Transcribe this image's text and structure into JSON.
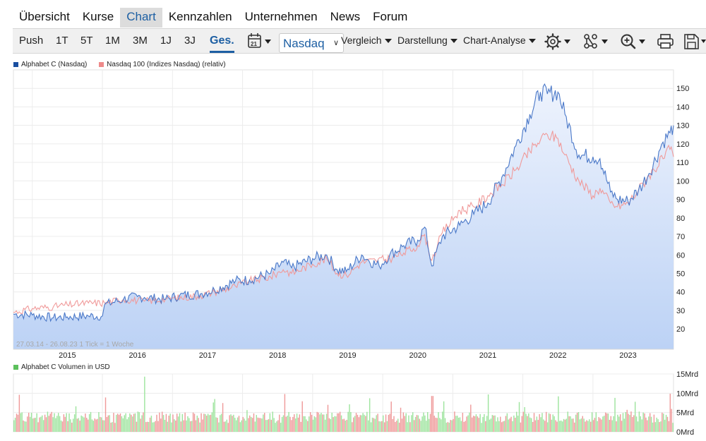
{
  "nav": {
    "tabs": [
      {
        "label": "Übersicht"
      },
      {
        "label": "Kurse"
      },
      {
        "label": "Chart",
        "active": true
      },
      {
        "label": "Kennzahlen"
      },
      {
        "label": "Unternehmen"
      },
      {
        "label": "News"
      },
      {
        "label": "Forum"
      }
    ]
  },
  "toolbar": {
    "periods": [
      "Push",
      "1T",
      "5T",
      "1M",
      "3M",
      "1J",
      "3J",
      "Ges."
    ],
    "selected_period": "Ges.",
    "calendar_label": "21",
    "exchange": "Nasdaq",
    "menus": [
      "Vergleich",
      "Darstellung",
      "Chart-Analyse"
    ],
    "icons": [
      "settings-icon",
      "indicators-icon",
      "zoom-icon",
      "print-icon",
      "save-icon"
    ]
  },
  "legend_main": [
    {
      "label": "Alphabet C (Nasdaq)",
      "color": "#1a4fa0"
    },
    {
      "label": "Nasdaq 100 (Indizes Nasdaq) (relativ)",
      "color": "#ee8a8a"
    }
  ],
  "range_label": "27.03.14 - 26.08.23   1 Tick = 1 Woche",
  "legend_volume": {
    "label": "Alphabet C Volumen in USD",
    "color": "#5cc05c"
  },
  "colors": {
    "accent": "#1d5fa3",
    "price_line": "#4a78c8",
    "index_line": "#f09a9a",
    "area_top": "#eef3fd",
    "area_bottom": "#bcd2f5",
    "vol_up": "#9ee49e",
    "vol_down": "#ef9a9a"
  },
  "chart_data": [
    {
      "type": "area",
      "title": "",
      "x_start": "2014-03-27",
      "x_end": "2023-08-26",
      "x_tick_labels": [
        "2015",
        "2016",
        "2017",
        "2018",
        "2019",
        "2020",
        "2021",
        "2022",
        "2023"
      ],
      "y_ticks": [
        20,
        30,
        40,
        50,
        60,
        70,
        80,
        90,
        100,
        110,
        120,
        130,
        140,
        150
      ],
      "ylim": [
        9,
        160
      ],
      "grid": true,
      "legend": "top-left",
      "series": [
        {
          "name": "Alphabet C (Nasdaq)",
          "x": [
            2014.23,
            2014.5,
            2014.8,
            2015.0,
            2015.3,
            2015.5,
            2015.53,
            2015.8,
            2016.0,
            2016.1,
            2016.4,
            2016.6,
            2016.9,
            2017.1,
            2017.4,
            2017.6,
            2017.9,
            2018.08,
            2018.2,
            2018.5,
            2018.7,
            2018.85,
            2018.98,
            2019.2,
            2019.3,
            2019.45,
            2019.6,
            2019.8,
            2020.0,
            2020.1,
            2020.2,
            2020.35,
            2020.6,
            2020.8,
            2021.0,
            2021.2,
            2021.4,
            2021.6,
            2021.75,
            2021.85,
            2022.0,
            2022.1,
            2022.3,
            2022.5,
            2022.6,
            2022.75,
            2022.85,
            2023.0,
            2023.15,
            2023.3,
            2023.5,
            2023.6,
            2023.65
          ],
          "y": [
            28,
            27.5,
            26,
            26.5,
            27,
            27,
            33,
            36,
            37.5,
            37,
            36,
            38,
            39,
            41,
            46,
            46.5,
            50,
            56,
            53,
            58,
            60,
            52,
            51,
            60,
            57,
            54,
            60,
            65,
            68,
            75,
            54,
            70,
            76,
            82,
            88,
            102,
            119,
            136,
            148,
            147,
            148,
            136,
            114,
            113,
            112,
            94,
            90,
            89,
            95,
            104,
            121,
            126,
            130
          ]
        },
        {
          "name": "Nasdaq 100 (Indizes Nasdaq) (relativ)",
          "x": [
            2014.23,
            2014.5,
            2014.8,
            2015.0,
            2015.3,
            2015.53,
            2015.8,
            2016.1,
            2016.4,
            2016.9,
            2017.1,
            2017.4,
            2017.6,
            2017.9,
            2018.08,
            2018.2,
            2018.5,
            2018.7,
            2018.85,
            2018.98,
            2019.2,
            2019.4,
            2019.6,
            2019.8,
            2020.0,
            2020.1,
            2020.2,
            2020.35,
            2020.6,
            2020.8,
            2021.0,
            2021.2,
            2021.4,
            2021.6,
            2021.75,
            2021.85,
            2022.0,
            2022.1,
            2022.3,
            2022.5,
            2022.6,
            2022.75,
            2022.85,
            2023.0,
            2023.15,
            2023.3,
            2023.5,
            2023.6,
            2023.65
          ],
          "y": [
            29,
            31,
            32,
            33,
            34,
            34,
            36,
            35,
            36,
            38,
            40,
            43,
            46,
            48,
            52,
            50,
            55,
            58,
            50,
            49,
            56,
            57,
            58,
            61,
            65,
            71,
            57,
            72,
            84,
            86,
            92,
            98,
            106,
            116,
            122,
            125,
            123,
            114,
            100,
            92,
            96,
            88,
            86,
            88,
            95,
            103,
            112,
            117,
            113
          ]
        }
      ]
    },
    {
      "type": "bar",
      "title": "Alphabet C Volumen in USD",
      "y_tick_labels": [
        "15Mrd",
        "10Mrd",
        "5Mrd",
        "0Mrd"
      ],
      "ylim": [
        0,
        15
      ],
      "unit": "Mrd USD",
      "legend": "top-left",
      "notable_peaks": [
        {
          "x": 2014.3,
          "value": 9.6
        },
        {
          "x": 2015.53,
          "value": 8.9
        },
        {
          "x": 2016.1,
          "value": 14.3
        },
        {
          "x": 2017.1,
          "value": 8.5
        },
        {
          "x": 2018.1,
          "value": 9.8
        },
        {
          "x": 2019.3,
          "value": 8.7
        },
        {
          "x": 2020.2,
          "value": 9.3
        },
        {
          "x": 2021.0,
          "value": 9.7
        },
        {
          "x": 2022.0,
          "value": 9.2
        },
        {
          "x": 2022.8,
          "value": 8.8
        },
        {
          "x": 2023.1,
          "value": 7.8
        },
        {
          "x": 2023.6,
          "value": 9.9
        }
      ],
      "typical_value": 4.2
    }
  ]
}
